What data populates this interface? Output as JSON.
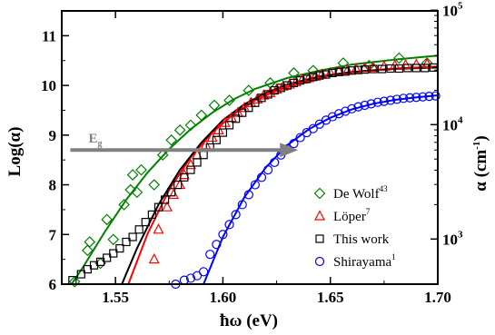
{
  "chart_data": {
    "type": "scatter",
    "xlabel": "ħω (eV)",
    "ylabel_left": "Log(α)",
    "ylabel_right": "α (cm",
    "ylabel_right_sup": "-1",
    "ylabel_right_close": ")",
    "xlim": [
      1.525,
      1.7
    ],
    "ylim": [
      6,
      11.5
    ],
    "x_ticks": [
      1.55,
      1.6,
      1.65,
      1.7
    ],
    "x_tick_labels": [
      "1.55",
      "1.60",
      "1.65",
      "1.70"
    ],
    "y_ticks": [
      6,
      7,
      8,
      9,
      10,
      11
    ],
    "y_tick_labels": [
      "6",
      "7",
      "8",
      "9",
      "10",
      "11"
    ],
    "right_ticks": [
      {
        "log": 6.9078,
        "label": "10",
        "exp": "3"
      },
      {
        "log": 9.2103,
        "label": "10",
        "exp": "4"
      },
      {
        "log": 11.5129,
        "label": "10",
        "exp": "5"
      }
    ],
    "annotation": {
      "label": "E",
      "sub": "g",
      "y": 8.7,
      "x_start": 1.529,
      "x_end": 1.635,
      "color": "#808080"
    },
    "series": [
      {
        "name": "De Wolf",
        "sup": "43",
        "marker": "diamond",
        "color": "#008000",
        "points": [
          [
            1.531,
            6.05
          ],
          [
            1.537,
            6.68
          ],
          [
            1.538,
            6.85
          ],
          [
            1.543,
            6.42
          ],
          [
            1.546,
            7.3
          ],
          [
            1.549,
            6.9
          ],
          [
            1.554,
            7.6
          ],
          [
            1.557,
            7.9
          ],
          [
            1.558,
            8.2
          ],
          [
            1.56,
            7.85
          ],
          [
            1.562,
            8.3
          ],
          [
            1.568,
            8.0
          ],
          [
            1.572,
            8.6
          ],
          [
            1.576,
            8.9
          ],
          [
            1.58,
            9.1
          ],
          [
            1.585,
            9.2
          ],
          [
            1.59,
            9.4
          ],
          [
            1.596,
            9.6
          ],
          [
            1.603,
            9.7
          ],
          [
            1.612,
            9.9
          ],
          [
            1.622,
            10.05
          ],
          [
            1.633,
            10.25
          ],
          [
            1.642,
            10.3
          ],
          [
            1.656,
            10.45
          ],
          [
            1.668,
            10.4
          ],
          [
            1.682,
            10.55
          ],
          [
            1.695,
            10.45
          ]
        ]
      },
      {
        "name": "Löper",
        "sup": "7",
        "marker": "triangle",
        "color": "#ff0000",
        "points": [
          [
            1.568,
            6.5
          ],
          [
            1.57,
            7.1
          ],
          [
            1.574,
            7.55
          ],
          [
            1.577,
            7.8
          ],
          [
            1.58,
            8.0
          ],
          [
            1.582,
            8.2
          ],
          [
            1.585,
            8.4
          ],
          [
            1.588,
            8.6
          ],
          [
            1.592,
            8.8
          ],
          [
            1.595,
            8.95
          ],
          [
            1.598,
            9.1
          ],
          [
            1.601,
            9.25
          ],
          [
            1.604,
            9.35
          ],
          [
            1.607,
            9.45
          ],
          [
            1.61,
            9.55
          ],
          [
            1.613,
            9.65
          ],
          [
            1.616,
            9.72
          ],
          [
            1.619,
            9.8
          ],
          [
            1.622,
            9.85
          ],
          [
            1.625,
            9.92
          ],
          [
            1.628,
            9.98
          ],
          [
            1.631,
            10.02
          ],
          [
            1.634,
            10.07
          ],
          [
            1.637,
            10.12
          ],
          [
            1.64,
            10.15
          ],
          [
            1.643,
            10.18
          ],
          [
            1.646,
            10.22
          ],
          [
            1.65,
            10.25
          ],
          [
            1.654,
            10.28
          ],
          [
            1.658,
            10.3
          ],
          [
            1.662,
            10.33
          ],
          [
            1.666,
            10.35
          ],
          [
            1.67,
            10.36
          ],
          [
            1.675,
            10.38
          ],
          [
            1.68,
            10.4
          ],
          [
            1.685,
            10.41
          ],
          [
            1.69,
            10.42
          ],
          [
            1.695,
            10.43
          ]
        ]
      },
      {
        "name": "This work",
        "sup": "",
        "marker": "square",
        "color": "#000000",
        "points": [
          [
            1.53,
            6.08
          ],
          [
            1.534,
            6.2
          ],
          [
            1.537,
            6.3
          ],
          [
            1.54,
            6.38
          ],
          [
            1.543,
            6.45
          ],
          [
            1.546,
            6.53
          ],
          [
            1.549,
            6.62
          ],
          [
            1.552,
            6.72
          ],
          [
            1.555,
            6.85
          ],
          [
            1.558,
            6.95
          ],
          [
            1.561,
            7.1
          ],
          [
            1.564,
            7.25
          ],
          [
            1.567,
            7.4
          ],
          [
            1.57,
            7.55
          ],
          [
            1.573,
            7.7
          ],
          [
            1.576,
            7.85
          ],
          [
            1.579,
            8.0
          ],
          [
            1.582,
            8.15
          ],
          [
            1.585,
            8.3
          ],
          [
            1.588,
            8.45
          ],
          [
            1.591,
            8.6
          ],
          [
            1.594,
            8.75
          ],
          [
            1.597,
            8.9
          ],
          [
            1.6,
            9.05
          ],
          [
            1.603,
            9.2
          ],
          [
            1.606,
            9.33
          ],
          [
            1.609,
            9.45
          ],
          [
            1.612,
            9.55
          ],
          [
            1.615,
            9.65
          ],
          [
            1.618,
            9.75
          ],
          [
            1.621,
            9.82
          ],
          [
            1.624,
            9.9
          ],
          [
            1.627,
            9.95
          ],
          [
            1.63,
            10.0
          ],
          [
            1.633,
            10.05
          ],
          [
            1.636,
            10.1
          ],
          [
            1.639,
            10.13
          ],
          [
            1.642,
            10.17
          ],
          [
            1.645,
            10.2
          ],
          [
            1.648,
            10.22
          ],
          [
            1.651,
            10.25
          ],
          [
            1.654,
            10.27
          ],
          [
            1.657,
            10.28
          ],
          [
            1.66,
            10.3
          ],
          [
            1.663,
            10.31
          ],
          [
            1.666,
            10.32
          ],
          [
            1.67,
            10.33
          ],
          [
            1.674,
            10.33
          ],
          [
            1.678,
            10.34
          ],
          [
            1.682,
            10.34
          ],
          [
            1.686,
            10.35
          ],
          [
            1.69,
            10.35
          ],
          [
            1.694,
            10.35
          ],
          [
            1.698,
            10.36
          ]
        ]
      },
      {
        "name": "Shirayama",
        "sup": "1",
        "marker": "circle",
        "color": "#0000ff",
        "points": [
          [
            1.578,
            6.0
          ],
          [
            1.582,
            6.08
          ],
          [
            1.585,
            6.12
          ],
          [
            1.588,
            6.17
          ],
          [
            1.591,
            6.25
          ],
          [
            1.594,
            6.6
          ],
          [
            1.597,
            6.8
          ],
          [
            1.6,
            7.0
          ],
          [
            1.603,
            7.2
          ],
          [
            1.606,
            7.4
          ],
          [
            1.609,
            7.6
          ],
          [
            1.612,
            7.8
          ],
          [
            1.615,
            8.0
          ],
          [
            1.618,
            8.15
          ],
          [
            1.621,
            8.3
          ],
          [
            1.624,
            8.45
          ],
          [
            1.627,
            8.6
          ],
          [
            1.63,
            8.72
          ],
          [
            1.633,
            8.83
          ],
          [
            1.636,
            8.95
          ],
          [
            1.639,
            9.05
          ],
          [
            1.642,
            9.13
          ],
          [
            1.645,
            9.22
          ],
          [
            1.648,
            9.3
          ],
          [
            1.651,
            9.37
          ],
          [
            1.654,
            9.43
          ],
          [
            1.657,
            9.48
          ],
          [
            1.66,
            9.53
          ],
          [
            1.663,
            9.57
          ],
          [
            1.666,
            9.6
          ],
          [
            1.669,
            9.63
          ],
          [
            1.672,
            9.66
          ],
          [
            1.675,
            9.68
          ],
          [
            1.678,
            9.7
          ],
          [
            1.681,
            9.72
          ],
          [
            1.684,
            9.74
          ],
          [
            1.687,
            9.75
          ],
          [
            1.69,
            9.76
          ],
          [
            1.693,
            9.77
          ],
          [
            1.696,
            9.78
          ],
          [
            1.699,
            9.79
          ]
        ]
      }
    ],
    "fits": [
      {
        "color": "#008000",
        "points": [
          [
            1.528,
            5.9
          ],
          [
            1.535,
            6.35
          ],
          [
            1.545,
            7.05
          ],
          [
            1.555,
            7.7
          ],
          [
            1.565,
            8.25
          ],
          [
            1.575,
            8.72
          ],
          [
            1.585,
            9.12
          ],
          [
            1.595,
            9.45
          ],
          [
            1.605,
            9.72
          ],
          [
            1.615,
            9.93
          ],
          [
            1.63,
            10.15
          ],
          [
            1.645,
            10.3
          ],
          [
            1.66,
            10.42
          ],
          [
            1.68,
            10.52
          ],
          [
            1.7,
            10.6
          ]
        ]
      },
      {
        "color": "#ff0000",
        "points": [
          [
            1.556,
            6.0
          ],
          [
            1.565,
            7.02
          ],
          [
            1.575,
            7.9
          ],
          [
            1.585,
            8.55
          ],
          [
            1.595,
            9.05
          ],
          [
            1.605,
            9.42
          ],
          [
            1.615,
            9.7
          ],
          [
            1.625,
            9.9
          ],
          [
            1.635,
            10.05
          ],
          [
            1.65,
            10.2
          ],
          [
            1.665,
            10.29
          ],
          [
            1.68,
            10.34
          ],
          [
            1.7,
            10.38
          ]
        ]
      },
      {
        "color": "#000000",
        "points": [
          [
            1.553,
            6.0
          ],
          [
            1.56,
            6.72
          ],
          [
            1.57,
            7.6
          ],
          [
            1.58,
            8.3
          ],
          [
            1.59,
            8.85
          ],
          [
            1.6,
            9.3
          ],
          [
            1.61,
            9.62
          ],
          [
            1.62,
            9.85
          ],
          [
            1.63,
            10.02
          ],
          [
            1.645,
            10.18
          ],
          [
            1.66,
            10.27
          ],
          [
            1.68,
            10.33
          ],
          [
            1.7,
            10.36
          ]
        ]
      },
      {
        "color": "#0000ff",
        "points": [
          [
            1.591,
            6.0
          ],
          [
            1.6,
            6.95
          ],
          [
            1.61,
            7.75
          ],
          [
            1.62,
            8.35
          ],
          [
            1.63,
            8.8
          ],
          [
            1.64,
            9.12
          ],
          [
            1.65,
            9.35
          ],
          [
            1.66,
            9.52
          ],
          [
            1.67,
            9.63
          ],
          [
            1.68,
            9.71
          ],
          [
            1.69,
            9.76
          ],
          [
            1.7,
            9.8
          ]
        ]
      }
    ],
    "legend_position": "bottom-right",
    "grid": false
  }
}
